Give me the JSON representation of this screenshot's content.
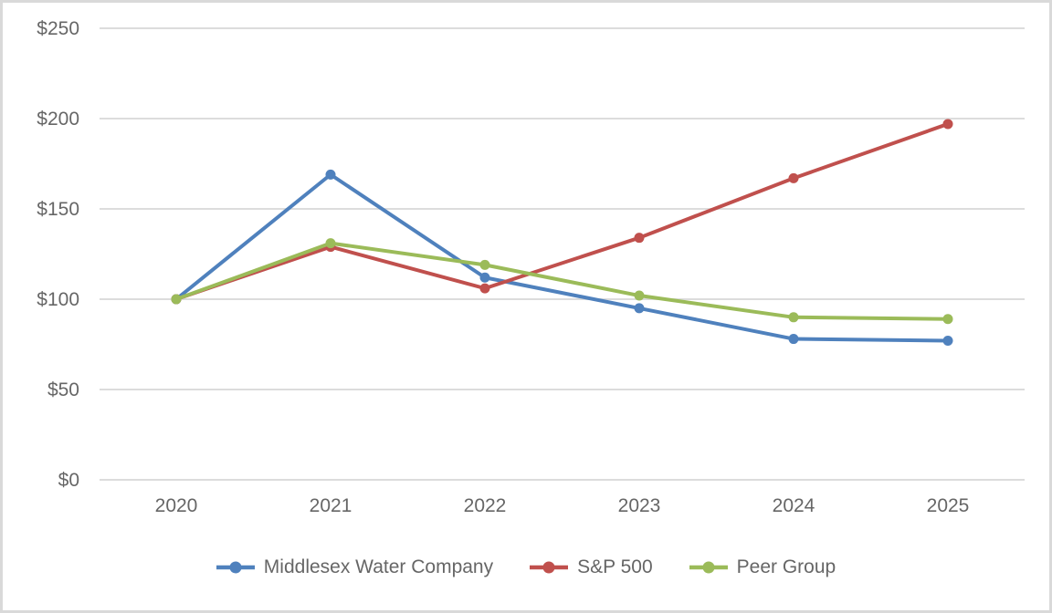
{
  "chart_data": {
    "type": "line",
    "categories": [
      "2020",
      "2021",
      "2022",
      "2023",
      "2024",
      "2025"
    ],
    "series": [
      {
        "name": "Middlesex Water Company",
        "color": "#4F81BD",
        "values": [
          100,
          169,
          112,
          95,
          78,
          77
        ]
      },
      {
        "name": "S&P 500",
        "color": "#C0504D",
        "values": [
          100,
          129,
          106,
          134,
          167,
          197
        ]
      },
      {
        "name": "Peer Group",
        "color": "#9BBB59",
        "values": [
          100,
          131,
          119,
          102,
          90,
          89
        ]
      }
    ],
    "title": "",
    "xlabel": "",
    "ylabel": "",
    "ylim": [
      0,
      250
    ],
    "ytick_values": [
      0,
      50,
      100,
      150,
      200,
      250
    ],
    "yticks": [
      "$0",
      "$50",
      "$100",
      "$150",
      "$200",
      "$250"
    ],
    "grid": true,
    "legend_position": "bottom",
    "marker": "circle"
  },
  "style": {
    "gridline_color": "#dcdcdc",
    "axis_text_color": "#666666",
    "frame_border_color": "#d9d9d9",
    "background_color": "#ffffff"
  }
}
